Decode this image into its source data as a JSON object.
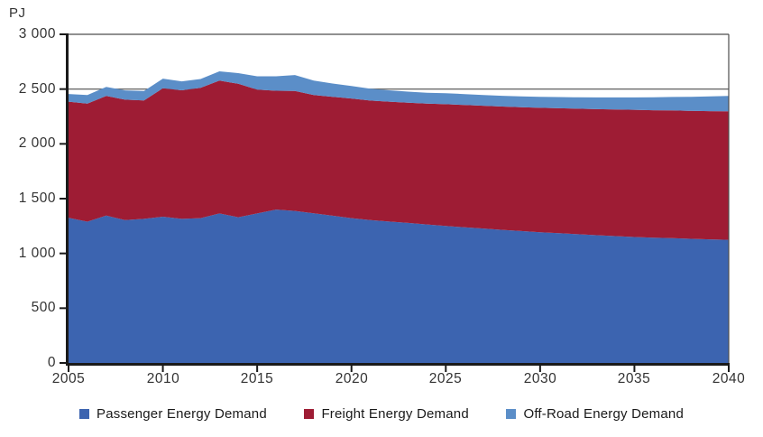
{
  "chart_data": {
    "type": "area",
    "stacked": true,
    "unit_label": "PJ",
    "x": [
      2005,
      2006,
      2007,
      2008,
      2009,
      2010,
      2011,
      2012,
      2013,
      2014,
      2015,
      2016,
      2017,
      2018,
      2019,
      2020,
      2021,
      2022,
      2023,
      2024,
      2025,
      2026,
      2027,
      2028,
      2029,
      2030,
      2031,
      2032,
      2033,
      2034,
      2035,
      2036,
      2037,
      2038,
      2039,
      2040
    ],
    "series": [
      {
        "name": "Passenger Energy Demand",
        "color": "#3c64b0",
        "values": [
          1325,
          1290,
          1345,
          1305,
          1315,
          1335,
          1315,
          1322,
          1365,
          1330,
          1365,
          1400,
          1388,
          1366,
          1344,
          1322,
          1305,
          1291,
          1278,
          1264,
          1250,
          1238,
          1227,
          1215,
          1204,
          1193,
          1184,
          1175,
          1166,
          1158,
          1150,
          1144,
          1139,
          1133,
          1128,
          1124
        ]
      },
      {
        "name": "Freight Energy Demand",
        "color": "#9e1c34",
        "values": [
          1060,
          1078,
          1092,
          1098,
          1082,
          1172,
          1174,
          1190,
          1212,
          1218,
          1130,
          1085,
          1095,
          1080,
          1085,
          1092,
          1090,
          1094,
          1098,
          1103,
          1112,
          1117,
          1121,
          1126,
          1131,
          1136,
          1141,
          1146,
          1151,
          1156,
          1161,
          1163,
          1166,
          1168,
          1171,
          1173
        ]
      },
      {
        "name": "Off-Road Energy Demand",
        "color": "#5b8ec8",
        "values": [
          70,
          77,
          83,
          85,
          86,
          88,
          82,
          80,
          85,
          98,
          122,
          132,
          145,
          132,
          122,
          114,
          108,
          104,
          101,
          100,
          100,
          99,
          98,
          98,
          99,
          100,
          102,
          104,
          107,
          110,
          113,
          118,
          123,
          129,
          135,
          141
        ]
      }
    ],
    "xlabel": "",
    "ylabel": "PJ",
    "ylim": [
      0,
      3000
    ],
    "y_tick_step": 500,
    "y_tick_labels": [
      "3 000",
      "2 500",
      "2 000",
      "1 500",
      "1 000",
      "500",
      "0"
    ],
    "x_tick_labels": [
      "2005",
      "2010",
      "2015",
      "2020",
      "2025",
      "2030",
      "2035",
      "2040"
    ],
    "reference_line_y": 2500,
    "grid": "single horizontal gridline at 2500; plot framed top and right",
    "legend_position": "bottom",
    "axis_color": "#1a1a1a",
    "frame_color": "#4d4d4d"
  }
}
